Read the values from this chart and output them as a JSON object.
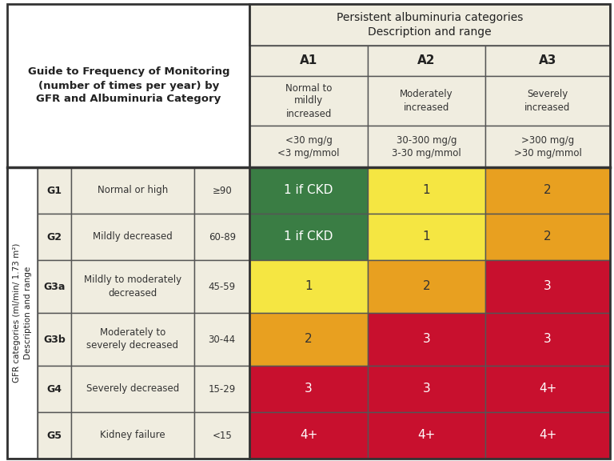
{
  "title_left": "Guide to Frequency of Monitoring\n(number of times per year) by\nGFR and Albuminuria Category",
  "top_header": "Persistent albuminuria categories\nDescription and range",
  "col_headers": [
    "A1",
    "A2",
    "A3"
  ],
  "col_sub1": [
    "Normal to\nmildly\nincreased",
    "Moderately\nincreased",
    "Severely\nincreased"
  ],
  "col_sub2": [
    "<30 mg/g\n<3 mg/mmol",
    "30-300 mg/g\n3-30 mg/mmol",
    ">300 mg/g\n>30 mg/mmol"
  ],
  "row_gfr_labels": [
    "G1",
    "G2",
    "G3a",
    "G3b",
    "G4",
    "G5"
  ],
  "row_desc": [
    "Normal or high",
    "Mildly decreased",
    "Mildly to moderately\ndecreased",
    "Moderately to\nseverely decreased",
    "Severely decreased",
    "Kidney failure"
  ],
  "row_range": [
    "≥90",
    "60-89",
    "45-59",
    "30-44",
    "15-29",
    "<15"
  ],
  "row_ylabel": "GFR categories (ml/min/ 1.73 m²)\nDescription and range",
  "cell_values": [
    [
      "1 if CKD",
      "1",
      "2"
    ],
    [
      "1 if CKD",
      "1",
      "2"
    ],
    [
      "1",
      "2",
      "3"
    ],
    [
      "2",
      "3",
      "3"
    ],
    [
      "3",
      "3",
      "4+"
    ],
    [
      "4+",
      "4+",
      "4+"
    ]
  ],
  "cell_colors": [
    [
      "#3a7d44",
      "#f5e642",
      "#e8a020"
    ],
    [
      "#3a7d44",
      "#f5e642",
      "#e8a020"
    ],
    [
      "#f5e642",
      "#e8a020",
      "#c8102e"
    ],
    [
      "#e8a020",
      "#c8102e",
      "#c8102e"
    ],
    [
      "#c8102e",
      "#c8102e",
      "#c8102e"
    ],
    [
      "#c8102e",
      "#c8102e",
      "#c8102e"
    ]
  ],
  "header_bg": "#f0ede0",
  "row_bg": "#f0ede0",
  "border_color": "#555555",
  "text_color_dark": "#333333",
  "text_color_light": "#ffffff",
  "cell_text_colors": [
    [
      "#ffffff",
      "#333333",
      "#333333"
    ],
    [
      "#ffffff",
      "#333333",
      "#333333"
    ],
    [
      "#333333",
      "#333333",
      "#ffffff"
    ],
    [
      "#333333",
      "#ffffff",
      "#ffffff"
    ],
    [
      "#ffffff",
      "#ffffff",
      "#ffffff"
    ],
    [
      "#ffffff",
      "#ffffff",
      "#ffffff"
    ]
  ]
}
